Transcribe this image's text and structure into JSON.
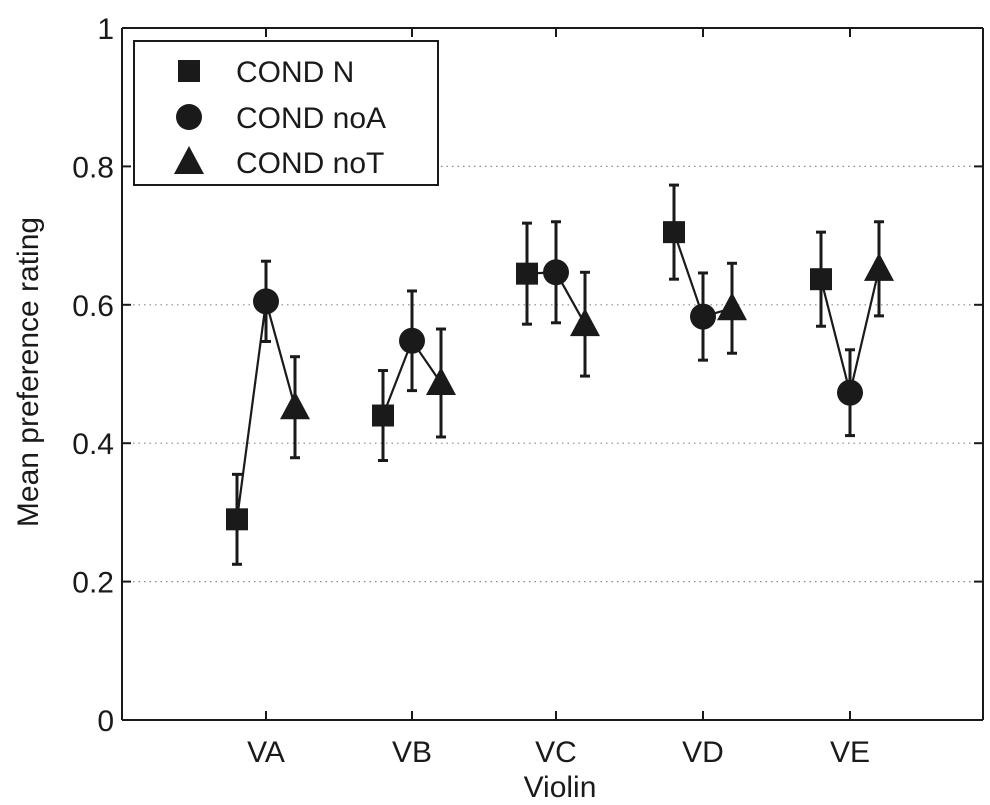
{
  "chart_data": {
    "type": "scatter",
    "title": "",
    "xlabel": "Violin",
    "ylabel": "Mean preference rating",
    "categories": [
      "VA",
      "VB",
      "VC",
      "VD",
      "VE"
    ],
    "ylim": [
      0,
      1
    ],
    "yticks": [
      0,
      0.2,
      0.4,
      0.6,
      0.8,
      1
    ],
    "ytick_labels": [
      "0",
      "0.2",
      "0.4",
      "0.6",
      "0.8",
      "1"
    ],
    "grid": "horizontal dotted",
    "legend_position": "top-left",
    "series": [
      {
        "name": "COND N",
        "marker": "square",
        "values": [
          0.29,
          0.44,
          0.645,
          0.705,
          0.637
        ],
        "error": [
          0.065,
          0.065,
          0.073,
          0.068,
          0.068
        ]
      },
      {
        "name": "COND noA",
        "marker": "circle",
        "values": [
          0.605,
          0.548,
          0.647,
          0.583,
          0.473
        ],
        "error": [
          0.058,
          0.072,
          0.073,
          0.063,
          0.062
        ]
      },
      {
        "name": "COND noT",
        "marker": "triangle",
        "values": [
          0.452,
          0.487,
          0.572,
          0.595,
          0.652
        ],
        "error": [
          0.073,
          0.078,
          0.075,
          0.065,
          0.068
        ]
      }
    ],
    "colors": {
      "marker": "#1a1a1a",
      "axis": "#1a1a1a",
      "grid": "#888888"
    }
  }
}
